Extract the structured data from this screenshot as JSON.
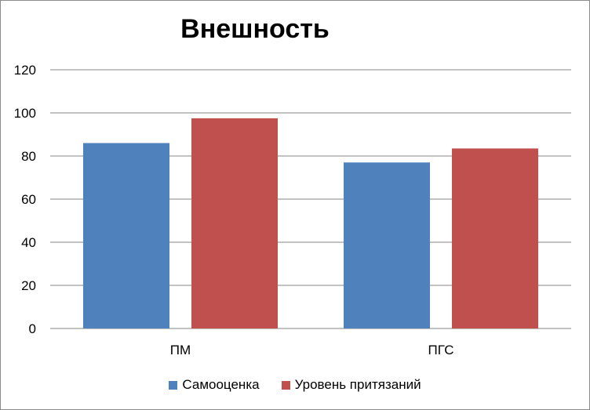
{
  "chart_data": {
    "type": "bar",
    "title": "Внешность",
    "categories": [
      "ПМ",
      "ПГС"
    ],
    "series": [
      {
        "name": "Самооценка",
        "values": [
          86,
          77
        ],
        "color": "#4f81bd"
      },
      {
        "name": "Уровень притязаний",
        "values": [
          97.5,
          83.5
        ],
        "color": "#c0504d"
      }
    ],
    "xlabel": "",
    "ylabel": "",
    "ylim": [
      0,
      120
    ],
    "yticks": [
      0,
      20,
      40,
      60,
      80,
      100,
      120
    ],
    "grid": true,
    "legend_position": "bottom"
  }
}
